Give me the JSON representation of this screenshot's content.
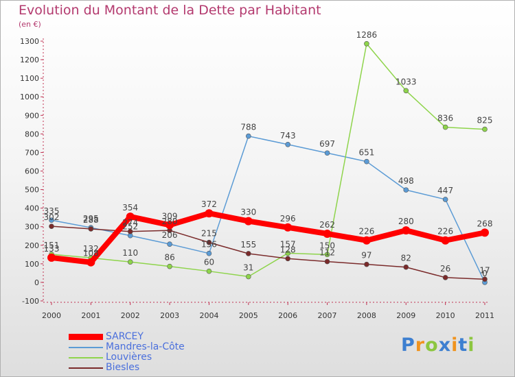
{
  "chart_data": {
    "type": "line",
    "title": "Evolution du Montant de la Dette par Habitant",
    "subtitle": "(en €)",
    "xlabel": "",
    "ylabel": "",
    "ylim": [
      -100,
      1300
    ],
    "yticks": [
      -100,
      0,
      100,
      200,
      300,
      400,
      500,
      600,
      700,
      800,
      900,
      1000,
      1100,
      1200,
      1300
    ],
    "categories": [
      "2000",
      "2001",
      "2002",
      "2003",
      "2004",
      "2005",
      "2006",
      "2007",
      "2008",
      "2009",
      "2010",
      "2011"
    ],
    "series": [
      {
        "name": "SARCEY",
        "color": "#ff0000",
        "values": [
          133,
          108,
          354,
          309,
          372,
          330,
          296,
          262,
          226,
          280,
          226,
          268
        ]
      },
      {
        "name": "Mandres-la-Côte",
        "color": "#5b9bd5",
        "values": [
          335,
          295,
          252,
          206,
          156,
          788,
          743,
          697,
          651,
          498,
          447,
          0
        ]
      },
      {
        "name": "Louvières",
        "color": "#8ed44b",
        "values": [
          151,
          132,
          110,
          86,
          60,
          31,
          157,
          150,
          1286,
          1033,
          836,
          825
        ]
      },
      {
        "name": "Biesles",
        "color": "#7a2a2a",
        "values": [
          302,
          288,
          274,
          280,
          215,
          155,
          128,
          112,
          97,
          82,
          26,
          17
        ]
      }
    ],
    "legend_position": "bottom-left"
  },
  "logo": {
    "letters": [
      "P",
      "r",
      "o",
      "x",
      "i",
      "t",
      "i"
    ],
    "colors": [
      "#3d7fd0",
      "#f0931e",
      "#8cc63f",
      "#3d7fd0",
      "#f0931e",
      "#3d7fd0",
      "#8cc63f"
    ]
  }
}
